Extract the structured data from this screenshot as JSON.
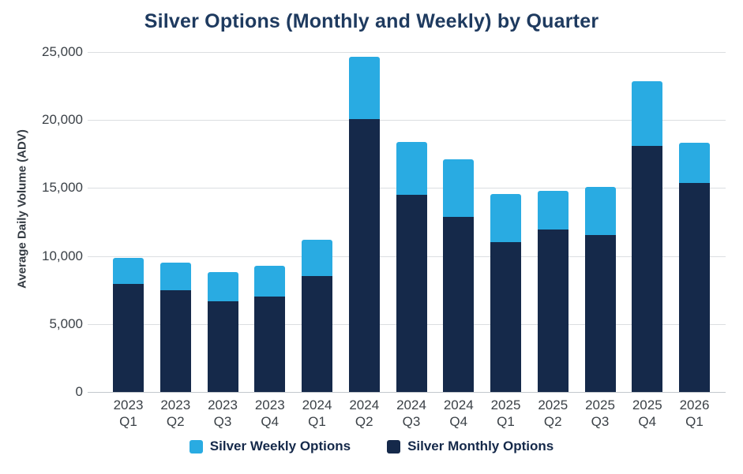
{
  "title": "Silver Options (Monthly and Weekly) by Quarter",
  "y_axis": {
    "label": "Average Daily Volume (ADV)",
    "ticks": [
      "25,000",
      "20,000",
      "15,000",
      "10,000",
      "5,000",
      "0"
    ],
    "max": 25000,
    "min": 0
  },
  "legend": [
    {
      "name": "weekly",
      "label": "Silver Weekly Options",
      "color": "#29abe2"
    },
    {
      "name": "monthly",
      "label": "Silver Monthly Options",
      "color": "#15294a"
    }
  ],
  "chart_data": {
    "type": "bar",
    "stacked": true,
    "title": "Silver Options (Monthly and Weekly) by Quarter",
    "xlabel": "",
    "ylabel": "Average Daily Volume (ADV)",
    "ylim": [
      0,
      25000
    ],
    "grid": "horizontal",
    "legend_position": "bottom",
    "categories": [
      "2023 Q1",
      "2023 Q2",
      "2023 Q3",
      "2023 Q4",
      "2024 Q1",
      "2024 Q2",
      "2024 Q3",
      "2024 Q4",
      "2025 Q1",
      "2025 Q2",
      "2025 Q3",
      "2025 Q4",
      "2026 Q1"
    ],
    "series": [
      {
        "name": "Silver Monthly Options",
        "color": "#15294a",
        "values": [
          7950,
          7500,
          6700,
          7000,
          8550,
          20100,
          14500,
          12900,
          11050,
          11950,
          11550,
          18100,
          15400
        ]
      },
      {
        "name": "Silver Weekly Options",
        "color": "#29abe2",
        "values": [
          1900,
          2000,
          2100,
          2300,
          2650,
          4550,
          3900,
          4200,
          3500,
          2850,
          3550,
          4750,
          2950
        ]
      }
    ],
    "totals": [
      9850,
      9500,
      8800,
      9300,
      11200,
      24650,
      18400,
      17100,
      14550,
      14800,
      15100,
      22850,
      18350
    ]
  }
}
